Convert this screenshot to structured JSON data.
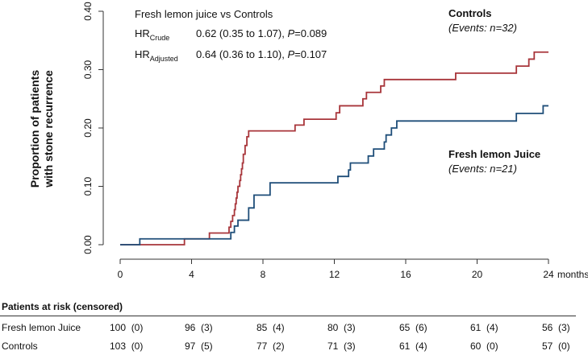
{
  "chart_data": {
    "type": "line",
    "subtype": "kaplan-meier-step",
    "ylabel_line1": "Proportion of patients",
    "ylabel_line2": "with stone recurrence",
    "xunit": "months",
    "xticks": [
      0,
      4,
      8,
      12,
      16,
      20,
      24
    ],
    "yticks": [
      "0.00",
      "0.10",
      "0.20",
      "0.30",
      "0.40"
    ],
    "xlim": [
      0,
      24
    ],
    "ylim": [
      0,
      0.4
    ],
    "annotation": {
      "title": "Fresh lemon juice vs Controls",
      "hr1_main": "HR",
      "hr1_sub": "Crude",
      "hr1_value": "0.62 (0.35 to 1.07), ",
      "hr1_p": "P",
      "hr1_pval": "=0.089",
      "hr2_main": "HR",
      "hr2_sub": "Adjusted",
      "hr2_value": "0.64 (0.36 to 1.10), ",
      "hr2_p": "P",
      "hr2_pval": "=0.107"
    },
    "series": [
      {
        "name": "Controls",
        "events_label": "(Events: n=32)",
        "color": "#a8353a",
        "steps": [
          [
            0,
            0
          ],
          [
            3.6,
            0.01
          ],
          [
            5,
            0.02
          ],
          [
            6.1,
            0.03
          ],
          [
            6.2,
            0.04
          ],
          [
            6.3,
            0.05
          ],
          [
            6.4,
            0.06
          ],
          [
            6.45,
            0.07
          ],
          [
            6.5,
            0.08
          ],
          [
            6.55,
            0.09
          ],
          [
            6.6,
            0.1
          ],
          [
            6.7,
            0.11
          ],
          [
            6.75,
            0.12
          ],
          [
            6.8,
            0.13
          ],
          [
            6.85,
            0.14
          ],
          [
            6.9,
            0.155
          ],
          [
            7.0,
            0.17
          ],
          [
            7.1,
            0.185
          ],
          [
            7.2,
            0.195
          ],
          [
            9.8,
            0.205
          ],
          [
            10.3,
            0.215
          ],
          [
            12.1,
            0.226
          ],
          [
            12.3,
            0.238
          ],
          [
            13.6,
            0.25
          ],
          [
            13.8,
            0.261
          ],
          [
            14.6,
            0.272
          ],
          [
            14.8,
            0.283
          ],
          [
            18.8,
            0.294
          ],
          [
            22.2,
            0.306
          ],
          [
            22.9,
            0.318
          ],
          [
            23.2,
            0.33
          ],
          [
            24,
            0.33
          ]
        ]
      },
      {
        "name": "Fresh lemon Juice",
        "events_label": "(Events: n=21)",
        "color": "#1f4e79",
        "steps": [
          [
            0,
            0
          ],
          [
            1.1,
            0.01
          ],
          [
            6.2,
            0.021
          ],
          [
            6.4,
            0.032
          ],
          [
            6.6,
            0.042
          ],
          [
            7.2,
            0.063
          ],
          [
            7.5,
            0.085
          ],
          [
            8.4,
            0.106
          ],
          [
            12.2,
            0.117
          ],
          [
            12.8,
            0.128
          ],
          [
            12.9,
            0.14
          ],
          [
            13.9,
            0.152
          ],
          [
            14.2,
            0.164
          ],
          [
            14.8,
            0.176
          ],
          [
            14.9,
            0.188
          ],
          [
            15.2,
            0.2
          ],
          [
            15.5,
            0.212
          ],
          [
            22.2,
            0.225
          ],
          [
            23.7,
            0.238
          ],
          [
            24,
            0.238
          ]
        ]
      }
    ]
  },
  "risk_table": {
    "title": "Patients at risk (censored)",
    "rows": [
      {
        "label": "Fresh lemon Juice",
        "cells": [
          "100  (0)",
          "96  (3)",
          "85  (4)",
          "80  (3)",
          "65  (6)",
          "61  (4)",
          "56  (3)"
        ]
      },
      {
        "label": "Controls",
        "cells": [
          "103  (0)",
          "97  (5)",
          "77  (2)",
          "71  (3)",
          "61  (4)",
          "60  (0)",
          "57  (0)"
        ]
      }
    ]
  }
}
